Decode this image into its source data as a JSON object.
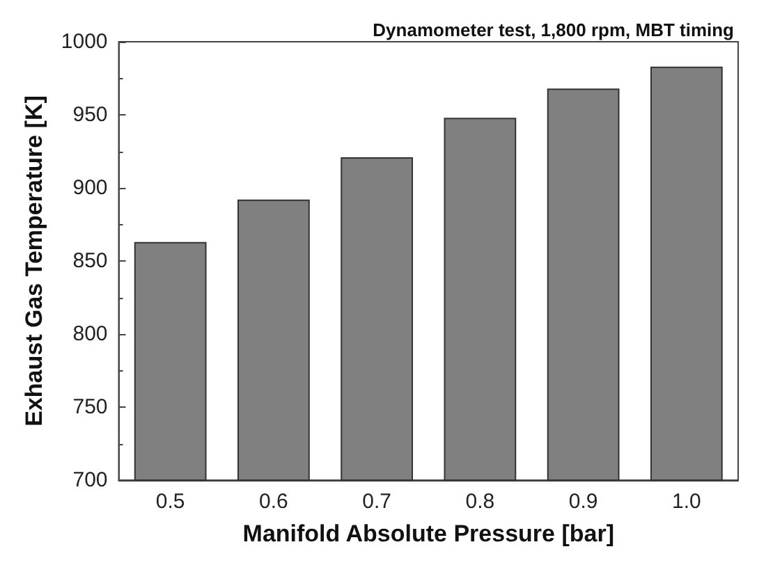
{
  "chart_data": {
    "type": "bar",
    "title": "Dynamometer test, 1,800 rpm, MBT timing",
    "xlabel": "Manifold Absolute Pressure [bar]",
    "ylabel": "Exhaust Gas Temperature [K]",
    "categories": [
      "0.5",
      "0.6",
      "0.7",
      "0.8",
      "0.9",
      "1.0"
    ],
    "values": [
      863,
      892,
      921,
      948,
      968,
      983
    ],
    "color": "#808080",
    "ylim": [
      700,
      1000
    ],
    "yticks": [
      700,
      750,
      800,
      850,
      900,
      950,
      1000
    ],
    "grid": false
  }
}
